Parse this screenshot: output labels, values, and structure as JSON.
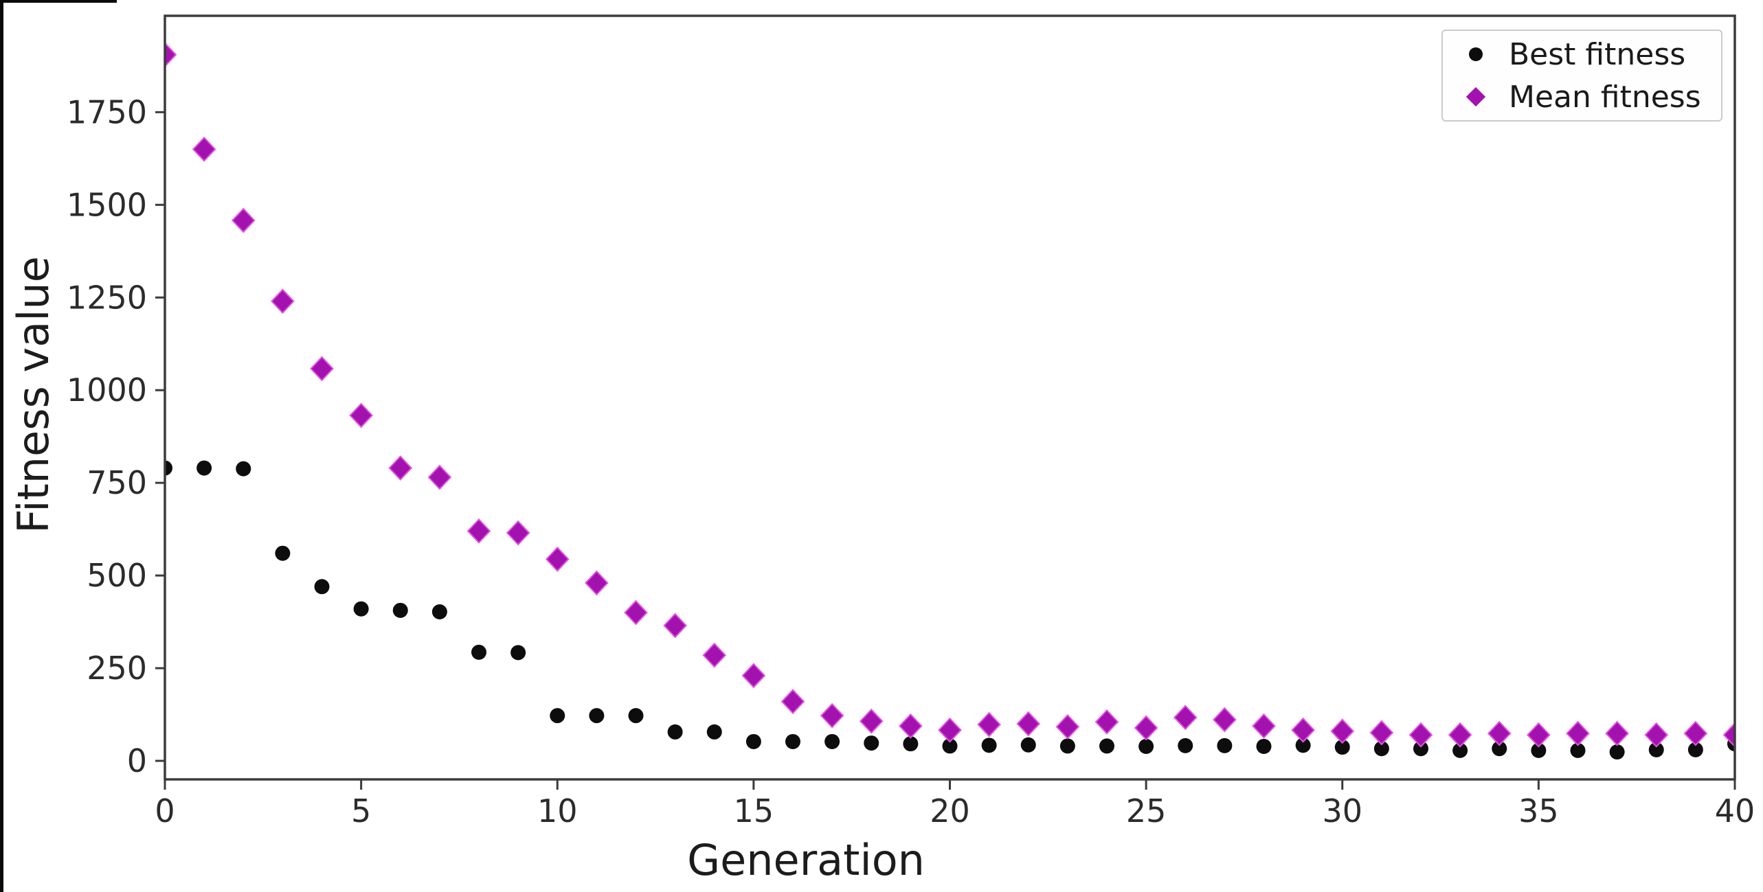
{
  "figure": {
    "xlabel": "Generation",
    "ylabel": "Fitness value",
    "background": "#ffffff",
    "spine_color": "#3b3b3b",
    "tick_color": "#2b2b2b"
  },
  "legend": {
    "position": "upper right",
    "items": [
      {
        "label": "Best fitness",
        "marker": "circle",
        "color": "#0d0d0d"
      },
      {
        "label": "Mean fitness",
        "marker": "diamond",
        "color": "#a312ae"
      }
    ]
  },
  "chart_data": {
    "type": "scatter",
    "title": "",
    "xlabel": "Generation",
    "ylabel": "Fitness value",
    "xlim": [
      0,
      40
    ],
    "ylim": [
      -50,
      2010
    ],
    "xticks": [
      0,
      5,
      10,
      15,
      20,
      25,
      30,
      35,
      40
    ],
    "yticks": [
      0,
      250,
      500,
      750,
      1000,
      1250,
      1500,
      1750
    ],
    "grid": false,
    "legend_position": "upper right",
    "x": [
      0,
      1,
      2,
      3,
      4,
      5,
      6,
      7,
      8,
      9,
      10,
      11,
      12,
      13,
      14,
      15,
      16,
      17,
      18,
      19,
      20,
      21,
      22,
      23,
      24,
      25,
      26,
      27,
      28,
      29,
      30,
      31,
      32,
      33,
      34,
      35,
      36,
      37,
      38,
      39,
      40
    ],
    "series": [
      {
        "name": "Best fitness",
        "marker": "circle",
        "color": "#0d0d0d",
        "values": [
          790,
          790,
          788,
          560,
          470,
          410,
          406,
          402,
          293,
          292,
          122,
          122,
          122,
          78,
          78,
          52,
          52,
          52,
          48,
          46,
          40,
          42,
          43,
          40,
          40,
          39,
          41,
          41,
          39,
          42,
          37,
          33,
          33,
          28,
          33,
          28,
          28,
          24,
          30,
          30,
          46
        ]
      },
      {
        "name": "Mean fitness",
        "marker": "diamond",
        "color": "#a312ae",
        "marker_edge_color": "#e156e1",
        "values": [
          1905,
          1650,
          1458,
          1240,
          1058,
          932,
          790,
          765,
          620,
          615,
          544,
          480,
          400,
          365,
          285,
          230,
          160,
          122,
          107,
          94,
          83,
          98,
          100,
          92,
          105,
          89,
          117,
          111,
          94,
          83,
          80,
          76,
          70,
          70,
          74,
          70,
          74,
          74,
          70,
          74,
          70
        ]
      }
    ]
  }
}
